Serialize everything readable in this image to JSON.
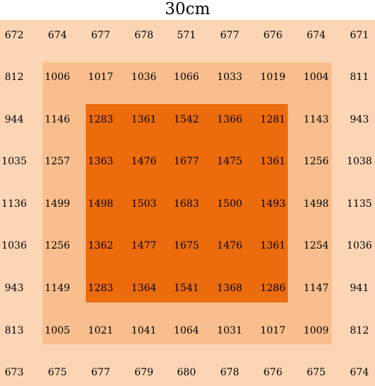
{
  "title": "30cm",
  "colors": {
    "outer": "#fcd5b5",
    "middle": "#f8be8d",
    "inner": "#ec6b0c",
    "text": "#000000"
  },
  "grid": [
    [
      "672",
      "674",
      "677",
      "678",
      "571",
      "677",
      "676",
      "674",
      "671"
    ],
    [
      "812",
      "1006",
      "1017",
      "1036",
      "1066",
      "1033",
      "1019",
      "1004",
      "811"
    ],
    [
      "944",
      "1146",
      "1283",
      "1361",
      "1542",
      "1366",
      "1281",
      "1143",
      "943"
    ],
    [
      "1035",
      "1257",
      "1363",
      "1476",
      "1677",
      "1475",
      "1361",
      "1256",
      "1038"
    ],
    [
      "1136",
      "1499",
      "1498",
      "1503",
      "1683",
      "1500",
      "1493",
      "1498",
      "1135"
    ],
    [
      "1036",
      "1256",
      "1362",
      "1477",
      "1675",
      "1476",
      "1361",
      "1254",
      "1036"
    ],
    [
      "943",
      "1149",
      "1283",
      "1364",
      "1541",
      "1368",
      "1286",
      "1147",
      "941"
    ],
    [
      "813",
      "1005",
      "1021",
      "1041",
      "1064",
      "1031",
      "1017",
      "1009",
      "812"
    ],
    [
      "673",
      "675",
      "677",
      "679",
      "680",
      "678",
      "676",
      "675",
      "674"
    ]
  ]
}
